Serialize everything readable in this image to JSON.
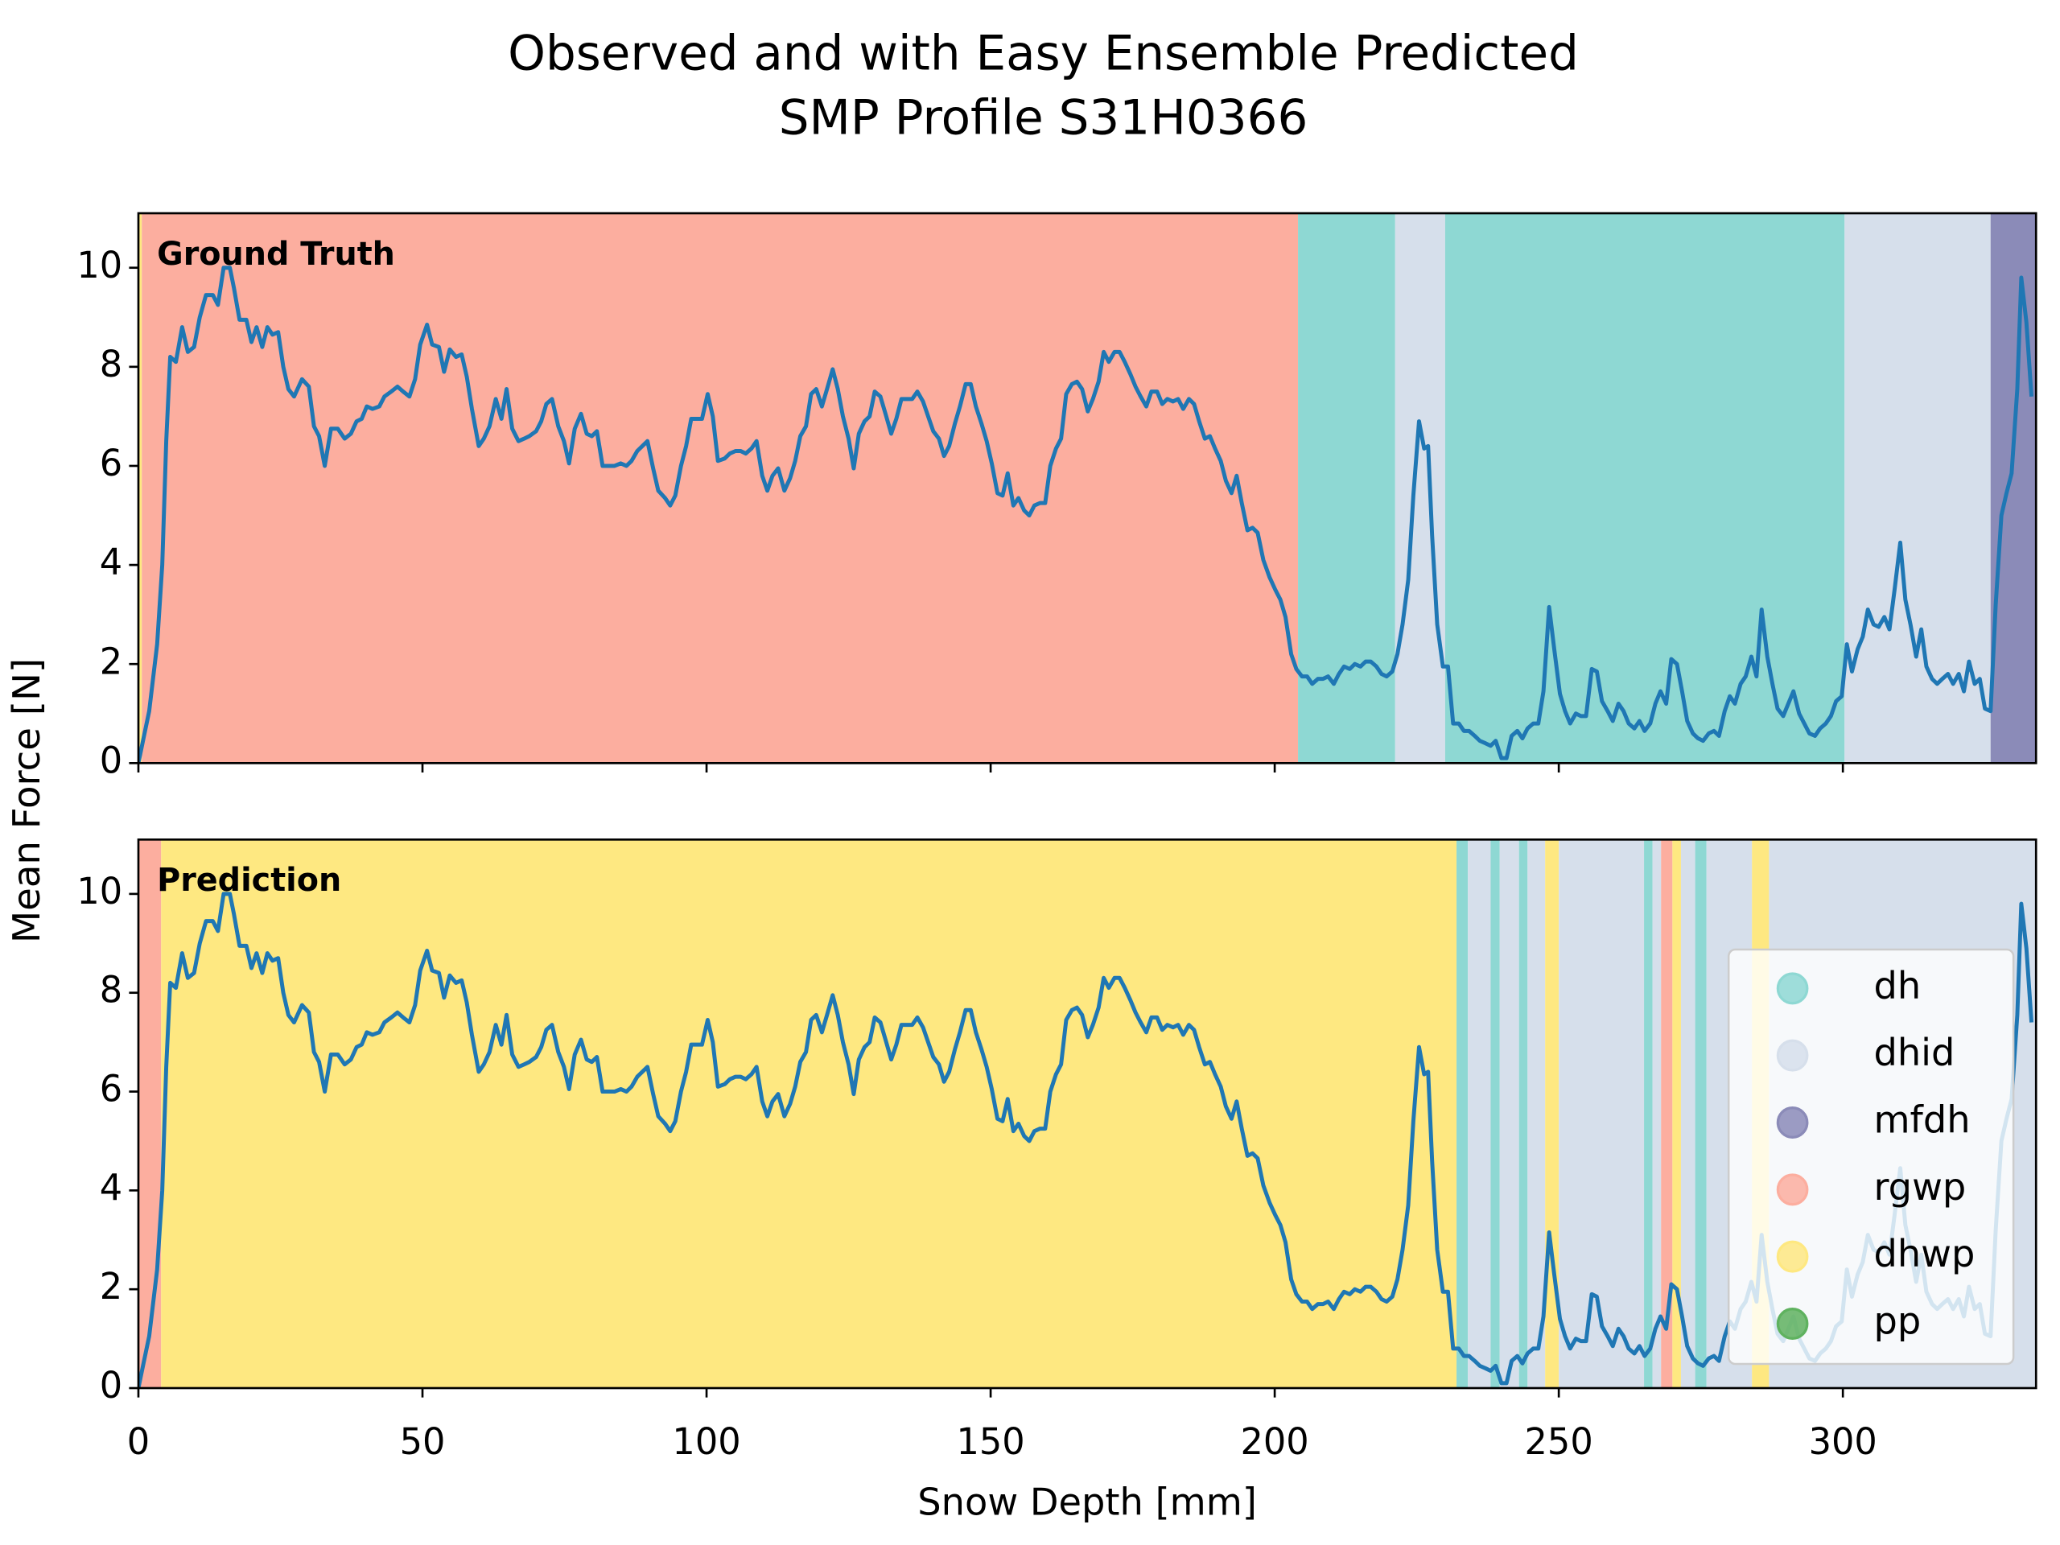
{
  "chart_data": {
    "type": "line",
    "title": [
      "Observed and with Easy Ensemble Predicted",
      "SMP Profile S31H0366"
    ],
    "xlabel": "Snow Depth [mm]",
    "ylabel": "Mean Force [N]",
    "color": "#1f77b4",
    "xlim": [
      0,
      334
    ],
    "ylim": [
      0,
      11.1
    ],
    "xticks": [
      0,
      50,
      100,
      150,
      200,
      250,
      300
    ],
    "yticks": [
      0,
      2,
      4,
      6,
      8,
      10
    ],
    "legend_loc": "lower right",
    "legend": [
      {
        "name": "dh",
        "color": "#8ed8d3"
      },
      {
        "name": "dhid",
        "color": "#d6dfeb"
      },
      {
        "name": "mfdh",
        "color": "#8b8bb8"
      },
      {
        "name": "rgwp",
        "color": "#fcae9f"
      },
      {
        "name": "dhwp",
        "color": "#fee881"
      },
      {
        "name": "pp",
        "color": "#5fb25f"
      }
    ],
    "panels": [
      {
        "label": "Ground Truth",
        "layers": [
          {
            "class": "dhwp",
            "start": 0,
            "end": 0.6
          },
          {
            "class": "rgwp",
            "start": 0.6,
            "end": 204.1
          },
          {
            "class": "dh",
            "start": 204.1,
            "end": 221.2
          },
          {
            "class": "dhid",
            "start": 221.2,
            "end": 230
          },
          {
            "class": "dh",
            "start": 230,
            "end": 300.3
          },
          {
            "class": "dhid",
            "start": 300.3,
            "end": 326
          },
          {
            "class": "mfdh",
            "start": 326,
            "end": 334
          }
        ]
      },
      {
        "label": "Prediction",
        "layers": [
          {
            "class": "rgwp",
            "start": 0,
            "end": 4
          },
          {
            "class": "dhwp",
            "start": 4,
            "end": 232
          },
          {
            "class": "dh",
            "start": 232,
            "end": 234
          },
          {
            "class": "dhid",
            "start": 234,
            "end": 238
          },
          {
            "class": "dh",
            "start": 238,
            "end": 239.6
          },
          {
            "class": "dhid",
            "start": 239.6,
            "end": 243
          },
          {
            "class": "dh",
            "start": 243,
            "end": 244.5
          },
          {
            "class": "dhid",
            "start": 244.5,
            "end": 247.6
          },
          {
            "class": "dhwp",
            "start": 247.6,
            "end": 250
          },
          {
            "class": "dhid",
            "start": 250,
            "end": 265
          },
          {
            "class": "dh",
            "start": 265,
            "end": 266.5
          },
          {
            "class": "dhid",
            "start": 266.5,
            "end": 268
          },
          {
            "class": "rgwp",
            "start": 268,
            "end": 270
          },
          {
            "class": "dhwp",
            "start": 270,
            "end": 271.5
          },
          {
            "class": "dhid",
            "start": 271.5,
            "end": 274
          },
          {
            "class": "dh",
            "start": 274,
            "end": 276
          },
          {
            "class": "dhid",
            "start": 276,
            "end": 284
          },
          {
            "class": "dhwp",
            "start": 284,
            "end": 287
          },
          {
            "class": "dhid",
            "start": 287,
            "end": 334
          }
        ]
      }
    ],
    "x": [
      0,
      0.9,
      1.9,
      3.3,
      4.2,
      4.9,
      5.6,
      6.6,
      7.7,
      8.7,
      9.8,
      10.8,
      11.9,
      13.1,
      14.0,
      15.0,
      16.1,
      16.8,
      17.8,
      19.0,
      19.9,
      20.8,
      21.8,
      22.7,
      23.6,
      24.6,
      25.5,
      26.4,
      27.4,
      28.8,
      30.0,
      30.9,
      31.8,
      32.8,
      33.9,
      35.1,
      36.3,
      37.4,
      38.4,
      39.3,
      40.2,
      41.2,
      42.4,
      43.3,
      44.5,
      45.6,
      46.6,
      47.7,
      48.7,
      49.6,
      50.8,
      51.7,
      52.9,
      53.8,
      54.8,
      55.9,
      56.9,
      57.8,
      58.7,
      59.9,
      60.8,
      61.8,
      62.9,
      63.9,
      64.8,
      65.8,
      66.9,
      67.9,
      68.8,
      70.0,
      70.9,
      71.8,
      72.8,
      73.9,
      74.9,
      75.8,
      76.8,
      77.9,
      78.9,
      79.8,
      80.7,
      81.7,
      82.8,
      83.8,
      84.9,
      85.9,
      86.8,
      87.8,
      88.7,
      89.6,
      90.6,
      91.5,
      92.7,
      93.6,
      94.5,
      95.5,
      96.4,
      97.3,
      98.3,
      99.2,
      100.2,
      101.1,
      102.0,
      103.2,
      104.1,
      105.1,
      106.0,
      106.9,
      107.9,
      108.8,
      109.8,
      110.7,
      111.6,
      112.6,
      113.7,
      114.7,
      115.6,
      116.5,
      117.5,
      118.4,
      119.3,
      120.3,
      121.2,
      122.2,
      123.1,
      124.0,
      125.0,
      125.9,
      126.8,
      127.8,
      128.7,
      129.6,
      130.6,
      131.5,
      132.5,
      133.4,
      134.3,
      135.3,
      136.2,
      137.1,
      138.1,
      139.0,
      139.9,
      140.9,
      141.8,
      142.7,
      143.7,
      144.6,
      145.6,
      146.5,
      147.4,
      148.4,
      149.3,
      150.2,
      151.2,
      152.1,
      153.0,
      154.0,
      154.9,
      155.9,
      156.8,
      157.7,
      158.7,
      159.6,
      160.5,
      161.5,
      162.4,
      163.3,
      164.3,
      165.2,
      166.1,
      167.1,
      168.0,
      169.0,
      169.9,
      170.8,
      171.8,
      172.7,
      173.6,
      174.6,
      175.5,
      176.4,
      177.4,
      178.3,
      179.3,
      180.2,
      181.1,
      182.1,
      183.0,
      183.9,
      184.9,
      185.8,
      186.7,
      187.7,
      188.6,
      189.5,
      190.5,
      191.4,
      192.4,
      193.3,
      194.2,
      195.2,
      196.1,
      197.0,
      198.0,
      199.1,
      200.1,
      201.0,
      201.9,
      202.9,
      203.8,
      204.8,
      205.7,
      206.6,
      207.6,
      208.5,
      209.4,
      210.4,
      211.3,
      212.2,
      213.2,
      214.1,
      215.1,
      216.0,
      216.9,
      217.9,
      218.8,
      219.7,
      220.7,
      221.6,
      222.5,
      223.5,
      224.4,
      225.4,
      226.3,
      227.0,
      227.7,
      228.6,
      229.6,
      230.5,
      231.4,
      232.4,
      233.3,
      234.2,
      235.2,
      236.1,
      237.1,
      238.0,
      238.9,
      239.9,
      240.8,
      241.7,
      242.7,
      243.6,
      244.5,
      245.5,
      246.4,
      247.3,
      248.3,
      249.2,
      250.2,
      251.1,
      252.0,
      253.0,
      253.9,
      254.8,
      255.8,
      256.7,
      257.6,
      258.6,
      259.5,
      260.5,
      261.4,
      262.3,
      263.3,
      264.2,
      265.1,
      266.1,
      267.0,
      267.9,
      268.9,
      269.8,
      270.8,
      271.7,
      272.6,
      273.6,
      274.5,
      275.4,
      276.4,
      277.3,
      278.2,
      279.2,
      280.1,
      281.0,
      282.0,
      282.9,
      283.9,
      284.8,
      285.7,
      286.7,
      287.6,
      288.5,
      289.5,
      290.4,
      291.3,
      292.3,
      293.2,
      294.1,
      295.1,
      296.0,
      297.0,
      297.9,
      298.8,
      299.8,
      300.7,
      301.6,
      302.6,
      303.5,
      304.4,
      305.4,
      306.3,
      307.3,
      308.2,
      309.1,
      310.1,
      311.0,
      311.9,
      312.9,
      313.8,
      314.7,
      315.7,
      316.6,
      317.5,
      318.5,
      319.4,
      320.4,
      321.3,
      322.2,
      323.2,
      324.1,
      325.0,
      326.0,
      326.9,
      327.9,
      328.8,
      329.7,
      330.7,
      331.4,
      332.3,
      333.2
    ],
    "values": [
      0,
      0.5,
      1.05,
      2.4,
      4.0,
      6.5,
      8.2,
      8.1,
      8.8,
      8.3,
      8.4,
      9.0,
      9.45,
      9.45,
      9.25,
      10.0,
      10.0,
      9.6,
      8.95,
      8.95,
      8.5,
      8.8,
      8.4,
      8.8,
      8.65,
      8.7,
      8.0,
      7.55,
      7.4,
      7.75,
      7.6,
      6.8,
      6.6,
      6.0,
      6.75,
      6.75,
      6.55,
      6.65,
      6.9,
      6.95,
      7.2,
      7.15,
      7.2,
      7.4,
      7.5,
      7.6,
      7.5,
      7.4,
      7.75,
      8.45,
      8.85,
      8.45,
      8.4,
      7.9,
      8.35,
      8.2,
      8.25,
      7.8,
      7.15,
      6.4,
      6.55,
      6.8,
      7.35,
      6.95,
      7.55,
      6.75,
      6.5,
      6.55,
      6.6,
      6.7,
      6.9,
      7.25,
      7.35,
      6.8,
      6.5,
      6.05,
      6.75,
      7.05,
      6.65,
      6.6,
      6.7,
      6.0,
      6.0,
      6.0,
      6.05,
      6.0,
      6.1,
      6.3,
      6.4,
      6.5,
      5.95,
      5.5,
      5.35,
      5.2,
      5.4,
      6.0,
      6.4,
      6.95,
      6.95,
      6.95,
      7.45,
      7.0,
      6.1,
      6.15,
      6.25,
      6.3,
      6.3,
      6.25,
      6.35,
      6.5,
      5.8,
      5.5,
      5.8,
      5.95,
      5.5,
      5.75,
      6.1,
      6.6,
      6.8,
      7.45,
      7.55,
      7.2,
      7.55,
      7.95,
      7.55,
      7.0,
      6.55,
      5.95,
      6.65,
      6.9,
      7.0,
      7.5,
      7.4,
      7.05,
      6.65,
      6.95,
      7.35,
      7.35,
      7.35,
      7.5,
      7.3,
      7.0,
      6.7,
      6.55,
      6.2,
      6.4,
      6.85,
      7.2,
      7.65,
      7.65,
      7.2,
      6.85,
      6.5,
      6.05,
      5.45,
      5.4,
      5.85,
      5.2,
      5.35,
      5.1,
      5.0,
      5.2,
      5.25,
      5.25,
      6.0,
      6.35,
      6.55,
      7.45,
      7.65,
      7.7,
      7.55,
      7.1,
      7.35,
      7.7,
      8.3,
      8.1,
      8.3,
      8.3,
      8.1,
      7.85,
      7.6,
      7.4,
      7.2,
      7.5,
      7.5,
      7.25,
      7.35,
      7.3,
      7.35,
      7.15,
      7.35,
      7.25,
      6.9,
      6.55,
      6.6,
      6.35,
      6.1,
      5.7,
      5.45,
      5.8,
      5.25,
      4.7,
      4.75,
      4.65,
      4.1,
      3.75,
      3.5,
      3.3,
      2.95,
      2.2,
      1.9,
      1.75,
      1.75,
      1.6,
      1.7,
      1.7,
      1.75,
      1.6,
      1.8,
      1.95,
      1.9,
      2.0,
      1.95,
      2.05,
      2.05,
      1.95,
      1.8,
      1.75,
      1.85,
      2.2,
      2.8,
      3.7,
      5.4,
      6.9,
      6.35,
      6.4,
      4.6,
      2.8,
      1.95,
      1.95,
      0.8,
      0.8,
      0.65,
      0.65,
      0.55,
      0.45,
      0.4,
      0.35,
      0.45,
      0.1,
      0.1,
      0.55,
      0.65,
      0.5,
      0.7,
      0.8,
      0.8,
      1.45,
      3.15,
      2.3,
      1.4,
      1.05,
      0.8,
      1.0,
      0.95,
      0.95,
      1.9,
      1.85,
      1.25,
      1.05,
      0.85,
      1.2,
      1.05,
      0.8,
      0.7,
      0.85,
      0.65,
      0.8,
      1.2,
      1.45,
      1.2,
      2.1,
      2.0,
      1.45,
      0.85,
      0.6,
      0.5,
      0.45,
      0.6,
      0.65,
      0.55,
      1.05,
      1.35,
      1.2,
      1.6,
      1.75,
      2.15,
      1.75,
      3.1,
      2.15,
      1.6,
      1.1,
      0.95,
      1.2,
      1.45,
      1.0,
      0.8,
      0.6,
      0.55,
      0.7,
      0.8,
      0.95,
      1.25,
      1.35,
      2.4,
      1.85,
      2.3,
      2.55,
      3.1,
      2.8,
      2.75,
      2.95,
      2.7,
      3.5,
      4.45,
      3.3,
      2.8,
      2.15,
      2.7,
      1.95,
      1.7,
      1.6,
      1.7,
      1.8,
      1.6,
      1.8,
      1.45,
      2.05,
      1.6,
      1.7,
      1.1,
      1.05,
      3.2,
      5.0,
      5.45,
      5.85,
      7.55,
      9.8,
      8.9,
      7.4
    ]
  }
}
